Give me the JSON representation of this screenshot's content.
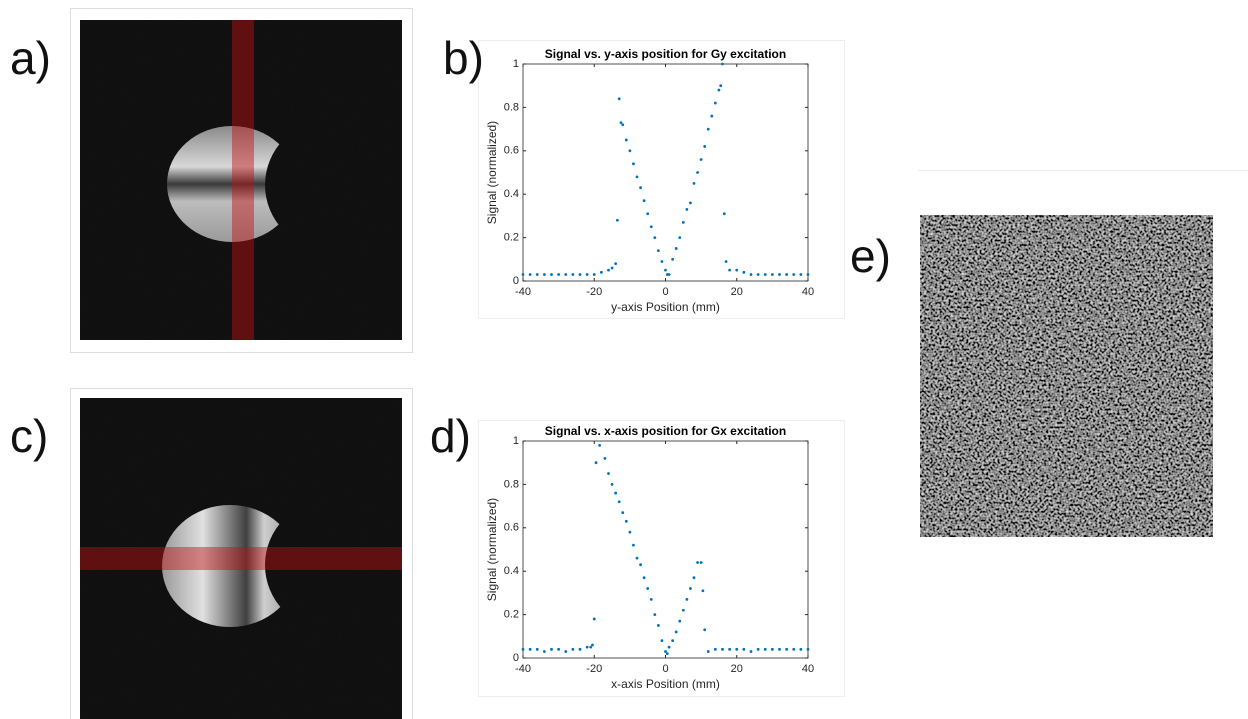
{
  "panel_labels": [
    "a)",
    "b)",
    "c)",
    "d)",
    "e)"
  ],
  "chart_data": [
    {
      "type": "scatter",
      "title": "Signal vs. y-axis position for Gy excitation",
      "x_label": "y-axis Position (mm)",
      "y_label": "Signal (normalized)",
      "x": [
        -40,
        -38,
        -36,
        -34,
        -32,
        -30,
        -28,
        -26,
        -24,
        -22,
        -20,
        -18,
        -16,
        -15,
        -14,
        -13.5,
        -13,
        -12.5,
        -12,
        -11,
        -10,
        -9,
        -8,
        -7,
        -6,
        -5,
        -4,
        -3,
        -2,
        -1,
        0,
        0.5,
        1,
        2,
        3,
        4,
        5,
        6,
        7,
        8,
        9,
        10,
        11,
        12,
        13,
        14,
        15,
        15.5,
        16,
        16.5,
        17,
        18,
        20,
        22,
        24,
        26,
        28,
        30,
        32,
        34,
        36,
        38,
        40
      ],
      "series": [
        {
          "name": "Gy",
          "color": "#0072bd",
          "values": [
            0.03,
            0.03,
            0.03,
            0.03,
            0.03,
            0.03,
            0.03,
            0.03,
            0.03,
            0.03,
            0.03,
            0.04,
            0.05,
            0.06,
            0.08,
            0.28,
            0.84,
            0.73,
            0.72,
            0.65,
            0.6,
            0.54,
            0.48,
            0.43,
            0.37,
            0.31,
            0.25,
            0.2,
            0.14,
            0.09,
            0.05,
            0.03,
            0.03,
            0.1,
            0.15,
            0.2,
            0.27,
            0.33,
            0.36,
            0.45,
            0.5,
            0.56,
            0.62,
            0.7,
            0.76,
            0.82,
            0.88,
            0.9,
            1.0,
            0.31,
            0.09,
            0.05,
            0.05,
            0.04,
            0.03,
            0.03,
            0.03,
            0.03,
            0.03,
            0.03,
            0.03,
            0.03,
            0.03
          ]
        }
      ],
      "xlim": [
        -40,
        40
      ],
      "xticks": [
        -40,
        -20,
        0,
        20,
        40
      ],
      "ylim": [
        0,
        1
      ],
      "yticks": [
        0,
        0.2,
        0.4,
        0.6,
        0.8,
        1
      ]
    },
    {
      "type": "scatter",
      "title": "Signal vs. x-axis position for Gx excitation",
      "x_label": "x-axis Position (mm)",
      "y_label": "Signal (normalized)",
      "x": [
        -40,
        -38,
        -36,
        -34,
        -32,
        -30,
        -28,
        -26,
        -24,
        -22,
        -21,
        -20.5,
        -20,
        -19.5,
        -18.5,
        -17,
        -16,
        -15,
        -14,
        -13,
        -12,
        -11,
        -10,
        -9,
        -8,
        -7,
        -6,
        -5,
        -4,
        -3,
        -2,
        -1,
        0,
        0.5,
        1,
        2,
        3,
        4,
        5,
        6,
        7,
        8,
        9,
        10,
        10.5,
        11,
        12,
        14,
        16,
        18,
        20,
        22,
        24,
        26,
        28,
        30,
        32,
        34,
        36,
        38,
        40
      ],
      "series": [
        {
          "name": "Gx",
          "color": "#0072bd",
          "values": [
            0.04,
            0.04,
            0.04,
            0.03,
            0.04,
            0.04,
            0.03,
            0.04,
            0.04,
            0.05,
            0.05,
            0.06,
            0.18,
            0.9,
            0.98,
            0.92,
            0.85,
            0.8,
            0.76,
            0.72,
            0.67,
            0.63,
            0.58,
            0.52,
            0.46,
            0.43,
            0.37,
            0.32,
            0.27,
            0.2,
            0.15,
            0.08,
            0.03,
            0.02,
            0.05,
            0.08,
            0.12,
            0.17,
            0.22,
            0.27,
            0.32,
            0.37,
            0.44,
            0.44,
            0.31,
            0.13,
            0.03,
            0.04,
            0.04,
            0.04,
            0.04,
            0.04,
            0.03,
            0.04,
            0.04,
            0.04,
            0.04,
            0.04,
            0.04,
            0.04,
            0.04
          ]
        }
      ],
      "xlim": [
        -40,
        40
      ],
      "xticks": [
        -40,
        -20,
        0,
        20,
        40
      ],
      "ylim": [
        0,
        1
      ],
      "yticks": [
        0,
        0.2,
        0.4,
        0.6,
        0.8,
        1
      ]
    }
  ]
}
